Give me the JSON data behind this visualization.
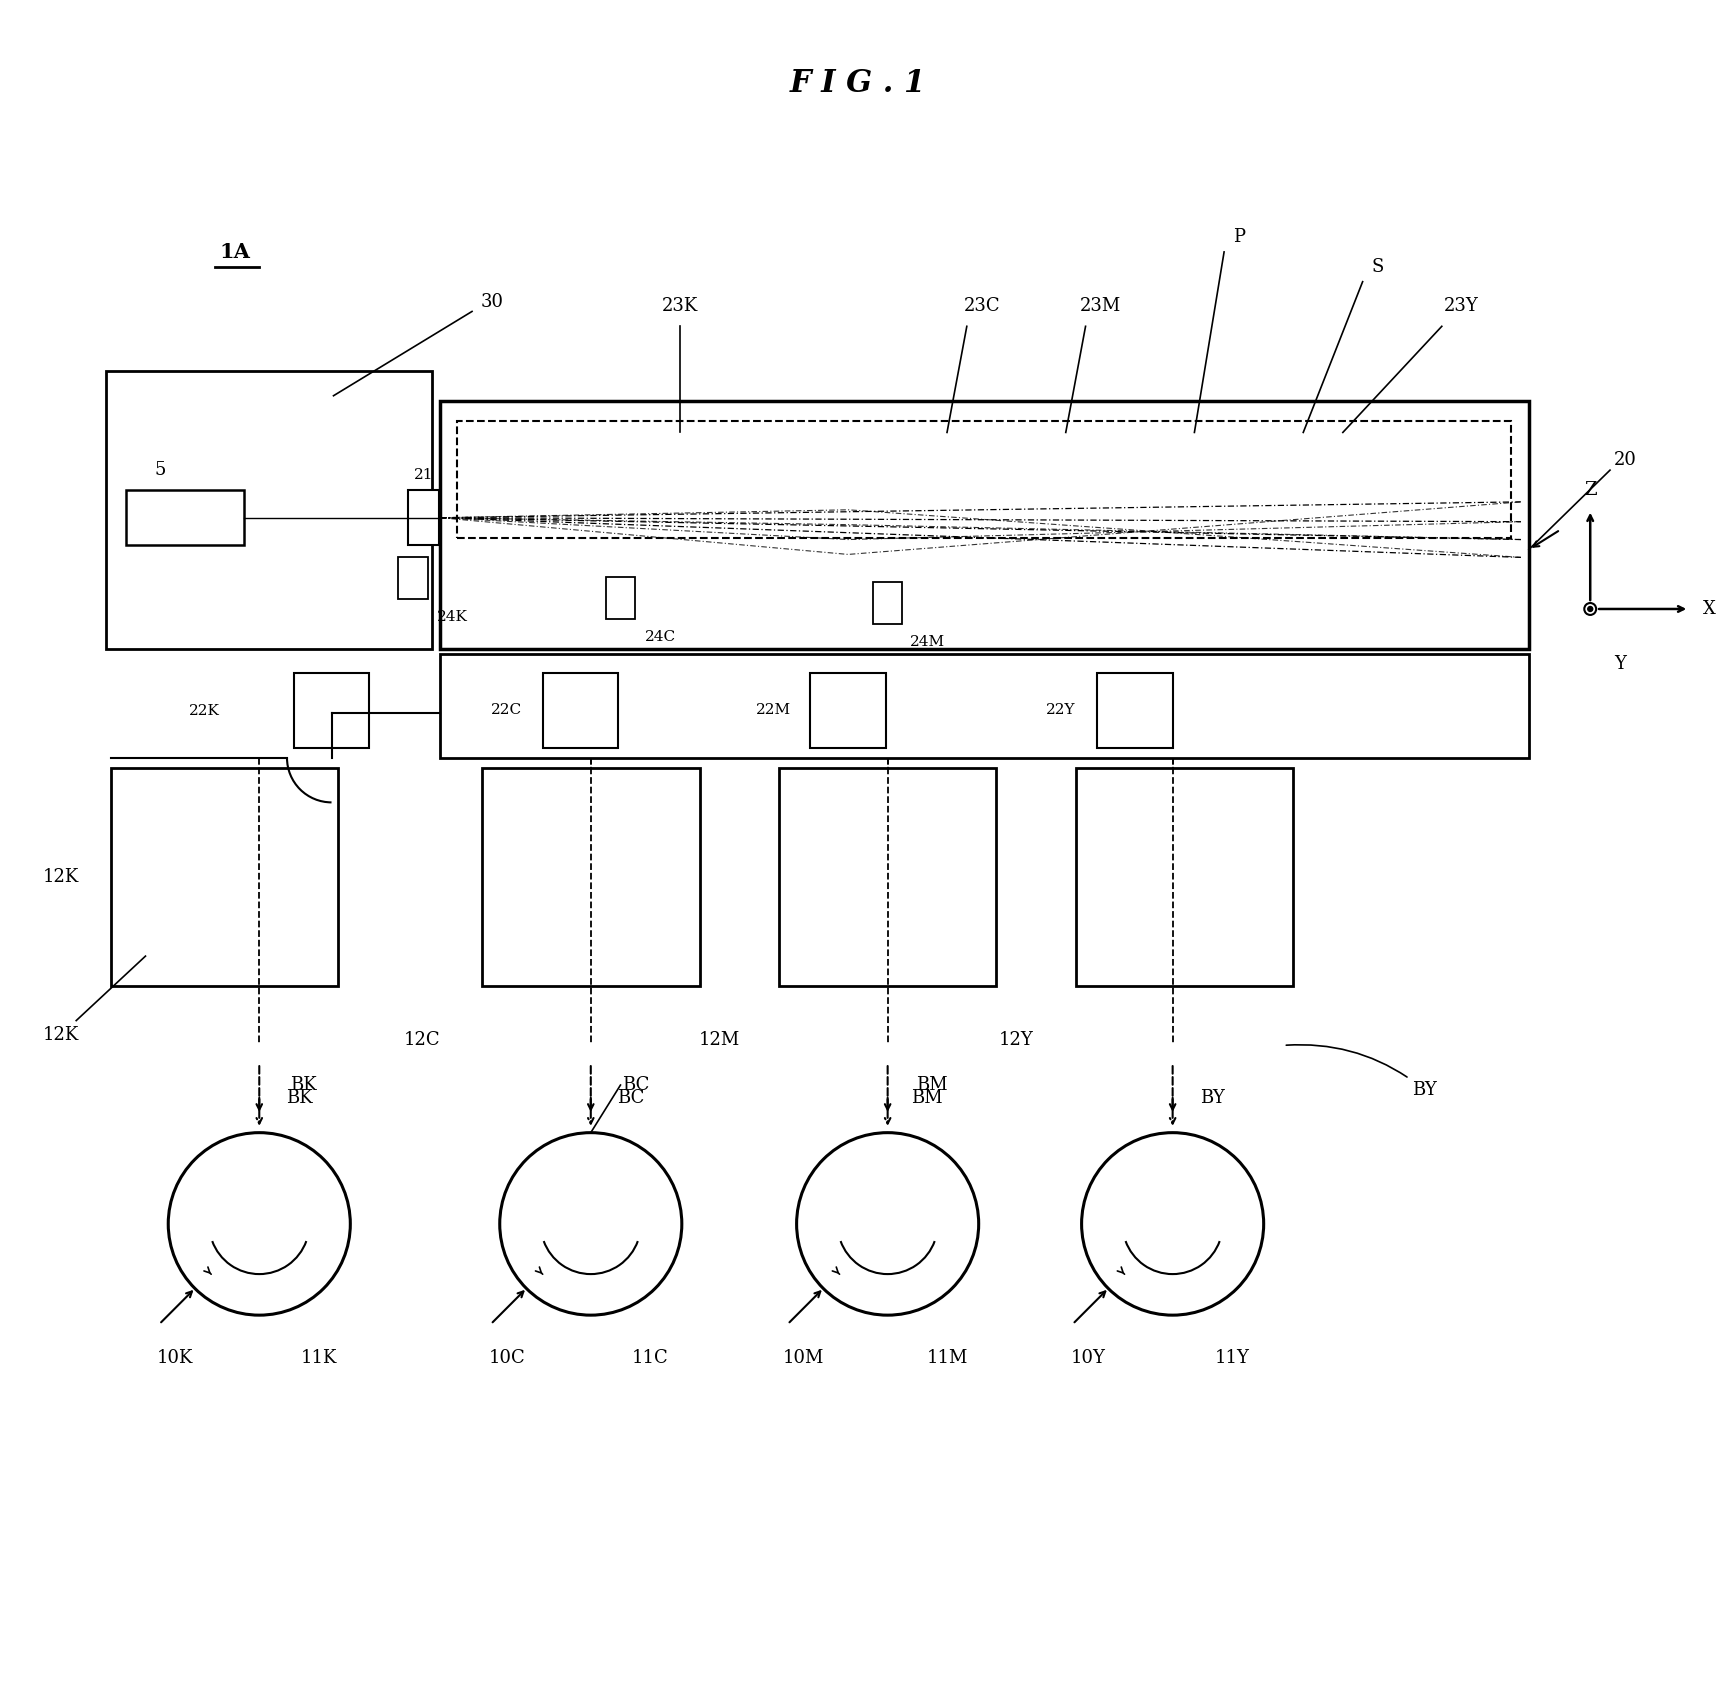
{
  "title": "F I G . 1",
  "background": "#ffffff",
  "label_1A": "1A",
  "label_30": "30",
  "label_5": "5",
  "label_21": "21",
  "label_20": "20",
  "label_23K": "23K",
  "label_23C": "23C",
  "label_23M": "23M",
  "label_23Y": "23Y",
  "label_P": "P",
  "label_S": "S",
  "label_24K": "24K",
  "label_24C": "24C",
  "label_24M": "24M",
  "label_22K": "22K",
  "label_22C": "22C",
  "label_22M": "22M",
  "label_22Y": "22Y",
  "label_12K": "12K",
  "label_12C": "12C",
  "label_12M": "12M",
  "label_12Y": "12Y",
  "label_11K": "11K",
  "label_11C": "11C",
  "label_11M": "11M",
  "label_11Y": "11Y",
  "label_10K": "10K",
  "label_10C": "10C",
  "label_10M": "10M",
  "label_10Y": "10Y",
  "label_BK": "BK",
  "label_BC": "BC",
  "label_BM": "BM",
  "label_BY": "BY",
  "label_Z": "Z",
  "label_X": "X",
  "label_Y": "Y"
}
